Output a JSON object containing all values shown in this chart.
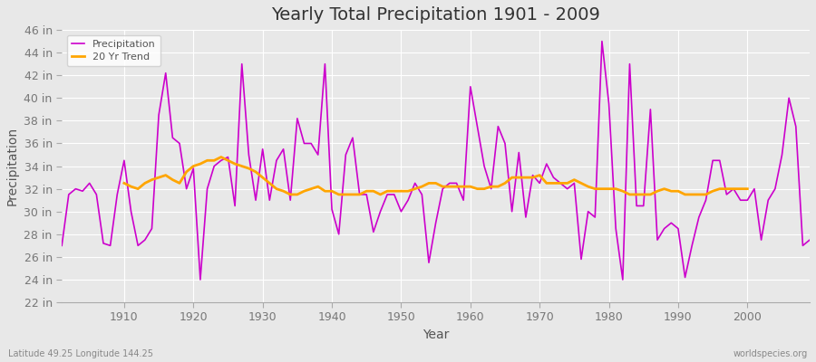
{
  "title": "Yearly Total Precipitation 1901 - 2009",
  "xlabel": "Year",
  "ylabel": "Precipitation",
  "bottom_left": "Latitude 49.25 Longitude 144.25",
  "bottom_right": "worldspecies.org",
  "years": [
    1901,
    1902,
    1903,
    1904,
    1905,
    1906,
    1907,
    1908,
    1909,
    1910,
    1911,
    1912,
    1913,
    1914,
    1915,
    1916,
    1917,
    1918,
    1919,
    1920,
    1921,
    1922,
    1923,
    1924,
    1925,
    1926,
    1927,
    1928,
    1929,
    1930,
    1931,
    1932,
    1933,
    1934,
    1935,
    1936,
    1937,
    1938,
    1939,
    1940,
    1941,
    1942,
    1943,
    1944,
    1945,
    1946,
    1947,
    1948,
    1949,
    1950,
    1951,
    1952,
    1953,
    1954,
    1955,
    1956,
    1957,
    1958,
    1959,
    1960,
    1961,
    1962,
    1963,
    1964,
    1965,
    1966,
    1967,
    1968,
    1969,
    1970,
    1971,
    1972,
    1973,
    1974,
    1975,
    1976,
    1977,
    1978,
    1979,
    1980,
    1981,
    1982,
    1983,
    1984,
    1985,
    1986,
    1987,
    1988,
    1989,
    1990,
    1991,
    1992,
    1993,
    1994,
    1995,
    1996,
    1997,
    1998,
    1999,
    2000,
    2001,
    2002,
    2003,
    2004,
    2005,
    2006,
    2007,
    2008,
    2009
  ],
  "precip": [
    27.0,
    31.5,
    32.0,
    31.8,
    32.5,
    31.5,
    27.2,
    27.0,
    31.5,
    34.5,
    30.0,
    27.0,
    27.5,
    28.5,
    38.5,
    42.2,
    36.5,
    36.0,
    32.0,
    33.8,
    24.0,
    32.0,
    34.0,
    34.5,
    34.8,
    30.5,
    43.0,
    35.0,
    31.0,
    35.5,
    31.0,
    34.5,
    35.5,
    31.0,
    38.2,
    36.0,
    36.0,
    35.0,
    43.0,
    30.2,
    28.0,
    35.0,
    36.5,
    31.5,
    31.5,
    28.2,
    30.0,
    31.5,
    31.5,
    30.0,
    31.0,
    32.5,
    31.5,
    25.5,
    29.0,
    32.0,
    32.5,
    32.5,
    31.0,
    41.0,
    37.5,
    34.0,
    32.0,
    37.5,
    36.0,
    30.0,
    35.2,
    29.5,
    33.2,
    32.5,
    34.2,
    33.0,
    32.5,
    32.0,
    32.5,
    25.8,
    30.0,
    29.5,
    45.0,
    39.5,
    28.5,
    24.0,
    43.0,
    30.5,
    30.5,
    39.0,
    27.5,
    28.5,
    29.0,
    28.5,
    24.2,
    27.0,
    29.5,
    31.0,
    34.5,
    34.5,
    31.5,
    32.0,
    31.0,
    31.0,
    32.0,
    27.5,
    31.0,
    32.0,
    35.0,
    40.0,
    37.5,
    27.0,
    27.5
  ],
  "trend_years": [
    1910,
    1911,
    1912,
    1913,
    1914,
    1915,
    1916,
    1917,
    1918,
    1919,
    1920,
    1921,
    1922,
    1923,
    1924,
    1925,
    1926,
    1927,
    1928,
    1929,
    1930,
    1931,
    1932,
    1933,
    1934,
    1935,
    1936,
    1937,
    1938,
    1939,
    1940,
    1941,
    1942,
    1943,
    1944,
    1945,
    1946,
    1947,
    1948,
    1949,
    1950,
    1951,
    1952,
    1953,
    1954,
    1955,
    1956,
    1957,
    1958,
    1959,
    1960,
    1961,
    1962,
    1963,
    1964,
    1965,
    1966,
    1967,
    1968,
    1969,
    1970,
    1971,
    1972,
    1973,
    1974,
    1975,
    1976,
    1977,
    1978,
    1979,
    1980,
    1981,
    1982,
    1983,
    1984,
    1985,
    1986,
    1987,
    1988,
    1989,
    1990,
    1991,
    1992,
    1993,
    1994,
    1995,
    1996,
    1997,
    1998,
    1999,
    2000
  ],
  "trend": [
    32.5,
    32.2,
    32.0,
    32.5,
    32.8,
    33.0,
    33.2,
    32.8,
    32.5,
    33.5,
    34.0,
    34.2,
    34.5,
    34.5,
    34.8,
    34.5,
    34.2,
    34.0,
    33.8,
    33.5,
    33.0,
    32.5,
    32.0,
    31.8,
    31.5,
    31.5,
    31.8,
    32.0,
    32.2,
    31.8,
    31.8,
    31.5,
    31.5,
    31.5,
    31.5,
    31.8,
    31.8,
    31.5,
    31.8,
    31.8,
    31.8,
    31.8,
    32.0,
    32.2,
    32.5,
    32.5,
    32.2,
    32.2,
    32.2,
    32.2,
    32.2,
    32.0,
    32.0,
    32.2,
    32.2,
    32.5,
    33.0,
    33.0,
    33.0,
    33.0,
    33.2,
    32.5,
    32.5,
    32.5,
    32.5,
    32.8,
    32.5,
    32.2,
    32.0,
    32.0,
    32.0,
    32.0,
    31.8,
    31.5,
    31.5,
    31.5,
    31.5,
    31.8,
    32.0,
    31.8,
    31.8,
    31.5,
    31.5,
    31.5,
    31.5,
    31.8,
    32.0,
    32.0,
    32.0,
    32.0,
    32.0
  ],
  "precip_color": "#cc00cc",
  "trend_color": "#ffa500",
  "bg_color": "#e8e8e8",
  "plot_bg_color": "#e8e8e8",
  "grid_color": "#ffffff",
  "ylim": [
    22,
    46
  ],
  "yticks": [
    22,
    24,
    26,
    28,
    30,
    32,
    34,
    36,
    38,
    40,
    42,
    44,
    46
  ],
  "ytick_labels": [
    "22 in",
    "24 in",
    "26 in",
    "28 in",
    "30 in",
    "32 in",
    "34 in",
    "36 in",
    "38 in",
    "40 in",
    "42 in",
    "44 in",
    "46 in"
  ],
  "xlim": [
    1901,
    2009
  ],
  "xticks": [
    1910,
    1920,
    1930,
    1940,
    1950,
    1960,
    1970,
    1980,
    1990,
    2000
  ],
  "title_fontsize": 14,
  "axis_label_fontsize": 10,
  "tick_fontsize": 9
}
